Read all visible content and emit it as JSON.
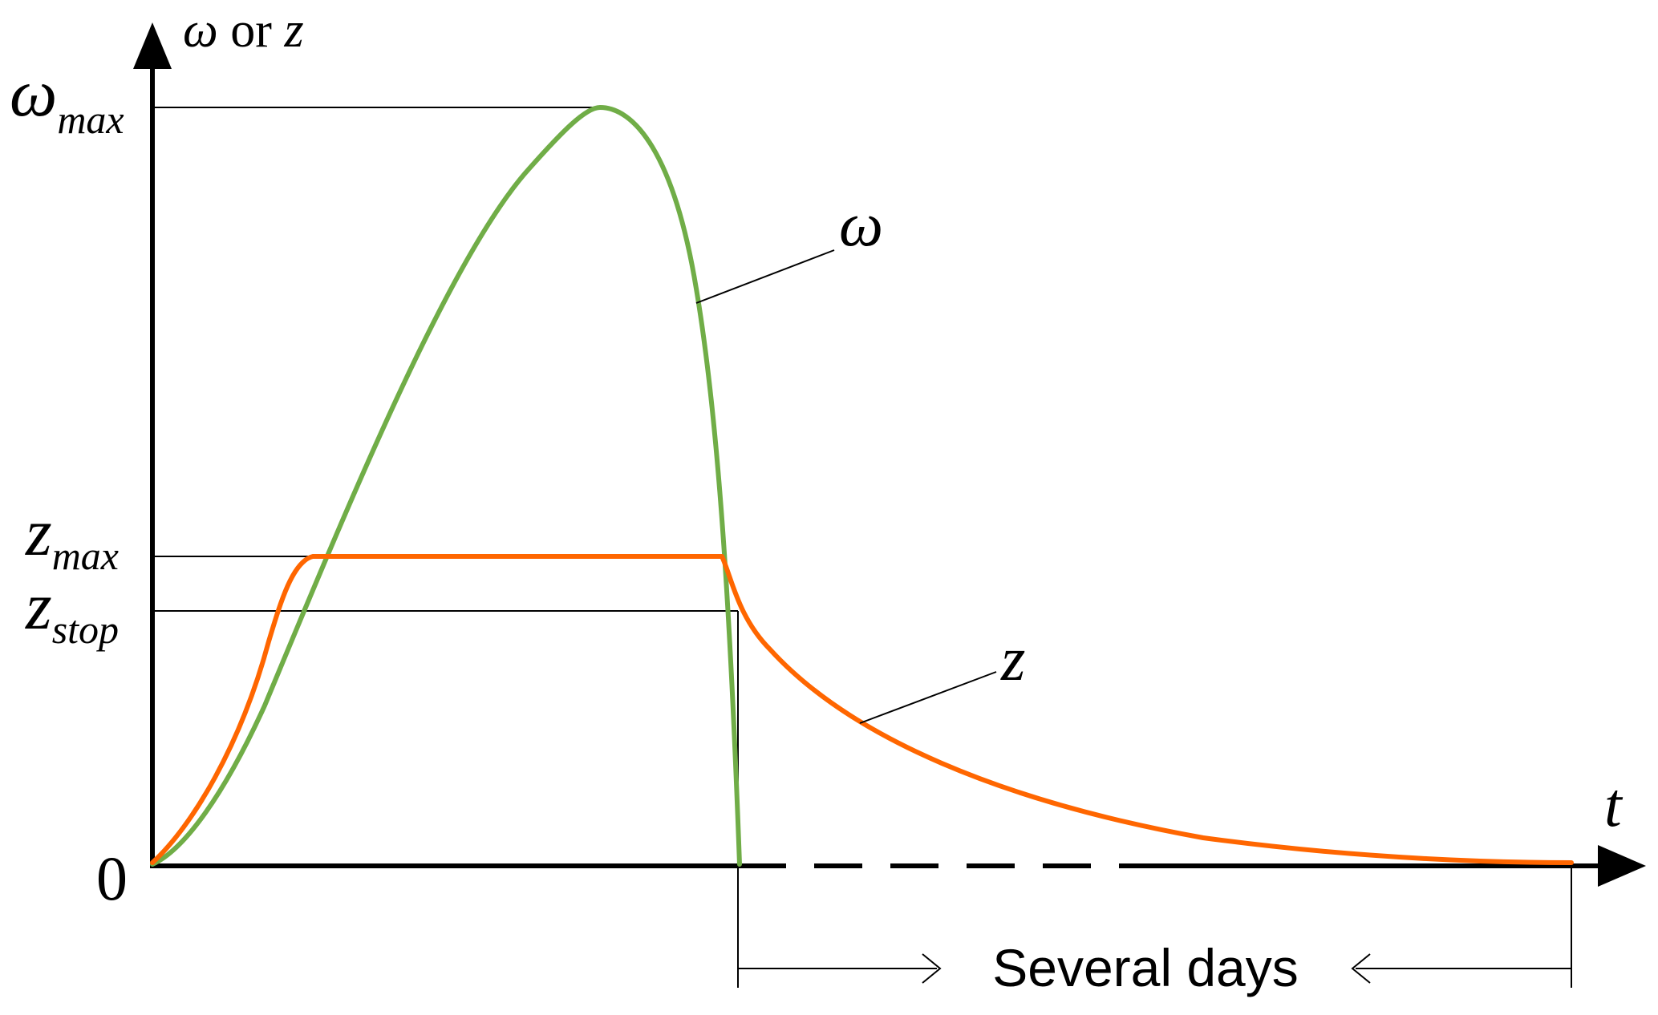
{
  "axes": {
    "y_label_omega": "ω",
    "y_label_or": " or ",
    "y_label_z": "z",
    "x_label": "t",
    "origin_label": "0"
  },
  "levels": {
    "omega_max": {
      "base": "ω",
      "sub": "max"
    },
    "z_max": {
      "base": "z",
      "sub": "max"
    },
    "z_stop": {
      "base": "z",
      "sub": "stop"
    }
  },
  "curves": {
    "omega": {
      "label": "ω",
      "color": "#70ad47"
    },
    "z": {
      "label": "z",
      "color": "#ff6600"
    }
  },
  "span": {
    "label": "Several days"
  },
  "colors": {
    "axis": "#000000",
    "background": "#ffffff"
  }
}
